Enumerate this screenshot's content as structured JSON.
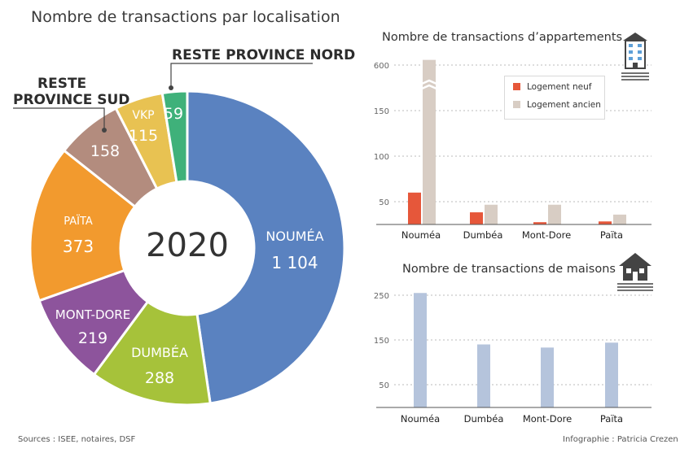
{
  "header": {
    "title": "Nombre de transactions par localisation"
  },
  "chart_data": [
    {
      "type": "pie",
      "center_label": "2020",
      "slices": [
        {
          "label": "NOUMÉA",
          "value": 1104,
          "value_text": "1 104",
          "color": "#5a82c0"
        },
        {
          "label": "DUMBÉA",
          "value": 288,
          "value_text": "288",
          "color": "#a6c23a"
        },
        {
          "label": "MONT-DORE",
          "value": 219,
          "value_text": "219",
          "color": "#8d549c"
        },
        {
          "label": "PAÏTA",
          "value": 373,
          "value_text": "373",
          "color": "#f29a2e"
        },
        {
          "label": "RESTE PROVINCE SUD",
          "value": 158,
          "value_text": "158",
          "color": "#b38c7e"
        },
        {
          "label": "VKP",
          "value": 115,
          "value_text": "115",
          "color": "#e8c252"
        },
        {
          "label": "RESTE PROVINCE NORD",
          "value": 59,
          "value_text": "59",
          "color": "#3fb17a"
        }
      ]
    },
    {
      "type": "bar",
      "title": "Nombre de transactions d’appartements",
      "categories": [
        "Nouméa",
        "Dumbéa",
        "Mont-Dore",
        "Païta"
      ],
      "yticks": [
        "50",
        "100",
        "150",
        "600"
      ],
      "axis_break": true,
      "series": [
        {
          "name": "Logement neuf",
          "color": "#e6573a",
          "values": [
            42,
            16,
            3,
            4
          ]
        },
        {
          "name": "Logement ancien",
          "color": "#d8cdc4",
          "values": [
            610,
            26,
            26,
            13
          ]
        }
      ]
    },
    {
      "type": "bar",
      "title": "Nombre de transactions de maisons",
      "categories": [
        "Nouméa",
        "Dumbéa",
        "Mont-Dore",
        "Païta"
      ],
      "yticks": [
        "50",
        "150",
        "250"
      ],
      "ylim": [
        0,
        280
      ],
      "series": [
        {
          "color": "#b5c4dc",
          "values": [
            255,
            140,
            133,
            144
          ]
        }
      ]
    }
  ],
  "footer": {
    "sources": "Sources : ISEE, notaires, DSF",
    "credit": "Infographie : Patricia Crezen"
  }
}
